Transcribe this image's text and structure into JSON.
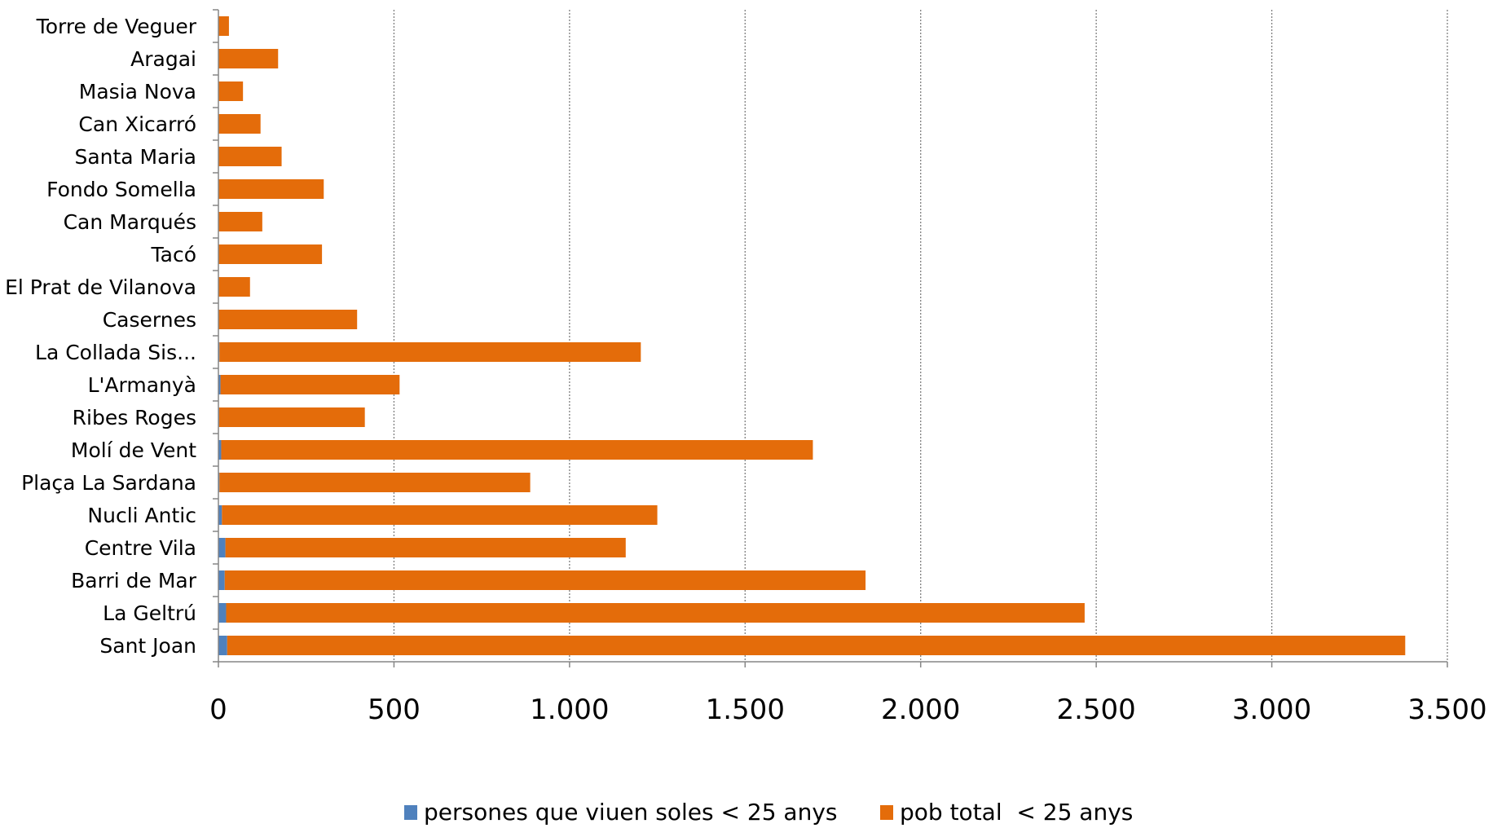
{
  "chart_data": {
    "type": "bar",
    "orientation": "horizontal",
    "stacked": true,
    "categories": [
      "Torre de Veguer",
      "Aragai",
      "Masia Nova",
      "Can Xicarró",
      "Santa Maria",
      "Fondo Somella",
      "Can Marqués",
      "Tacó",
      "El Prat de Vilanova",
      "Casernes",
      "La Collada Sis...",
      "L'Armanyà",
      "Ribes Roges",
      "Molí de Vent",
      "Plaça La Sardana",
      "Nucli Antic",
      "Centre Vila",
      "Barri de Mar",
      "La Geltrú",
      "Sant Joan"
    ],
    "series": [
      {
        "name": "persones que viuen soles < 25 anys",
        "color": "#4f81bd",
        "values": [
          0,
          0,
          0,
          0,
          0,
          0,
          0,
          0,
          0,
          0,
          3,
          6,
          2,
          8,
          3,
          10,
          20,
          18,
          22,
          25
        ]
      },
      {
        "name": "pob total  < 25 anys",
        "color": "#e46c0a",
        "values": [
          30,
          170,
          70,
          120,
          180,
          300,
          125,
          295,
          90,
          395,
          1200,
          510,
          415,
          1685,
          885,
          1240,
          1140,
          1825,
          2445,
          3355
        ]
      }
    ],
    "xlim": [
      0,
      3500
    ],
    "ticks": [
      "0",
      "500",
      "1.000",
      "1.500",
      "2.000",
      "2.500",
      "3.000",
      "3.500"
    ],
    "tick_values": [
      0,
      500,
      1000,
      1500,
      2000,
      2500,
      3000,
      3500
    ],
    "grid": true,
    "legend_position": "bottom"
  }
}
